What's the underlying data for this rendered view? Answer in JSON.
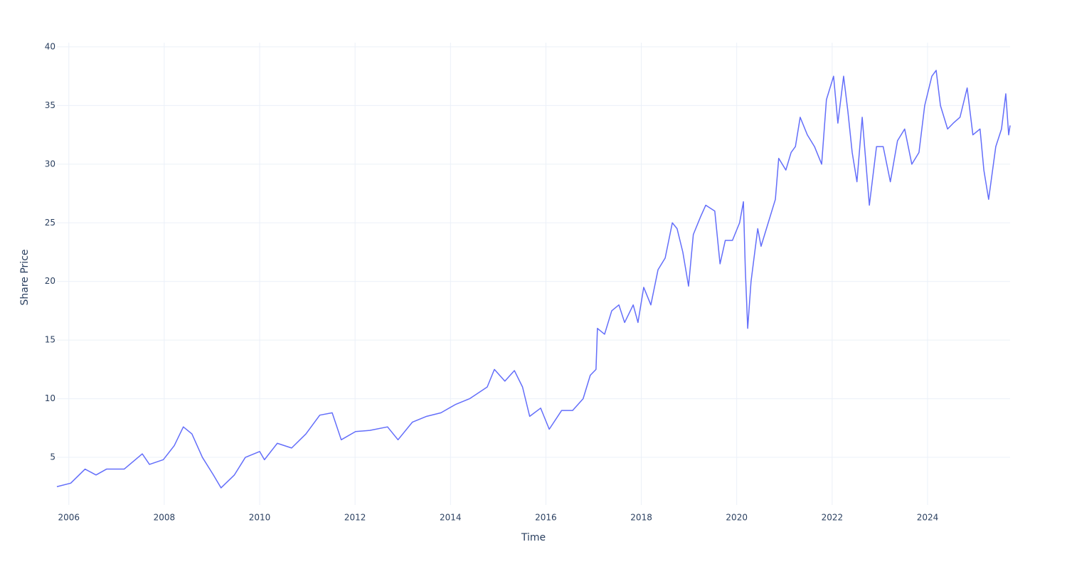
{
  "chart_data": {
    "type": "line",
    "x_label": "Time",
    "y_label": "Share Price",
    "x": [
      2005.75,
      2006.04,
      2006.34,
      2006.57,
      2006.79,
      2007.16,
      2007.54,
      2007.69,
      2007.98,
      2008.21,
      2008.4,
      2008.58,
      2008.8,
      2009.03,
      2009.19,
      2009.47,
      2009.7,
      2010.0,
      2010.1,
      2010.37,
      2010.67,
      2010.97,
      2011.26,
      2011.52,
      2011.71,
      2012.01,
      2012.31,
      2012.68,
      2012.9,
      2013.2,
      2013.5,
      2013.8,
      2014.1,
      2014.4,
      2014.77,
      2014.92,
      2015.14,
      2015.34,
      2015.51,
      2015.66,
      2015.89,
      2016.07,
      2016.33,
      2016.56,
      2016.78,
      2016.93,
      2017.05,
      2017.08,
      2017.23,
      2017.38,
      2017.53,
      2017.65,
      2017.83,
      2017.93,
      2018.05,
      2018.2,
      2018.35,
      2018.5,
      2018.65,
      2018.75,
      2018.87,
      2018.99,
      2019.09,
      2019.24,
      2019.35,
      2019.54,
      2019.65,
      2019.76,
      2019.91,
      2020.06,
      2020.14,
      2020.18,
      2020.23,
      2020.3,
      2020.44,
      2020.51,
      2020.66,
      2020.81,
      2020.88,
      2021.03,
      2021.14,
      2021.23,
      2021.33,
      2021.48,
      2021.63,
      2021.78,
      2021.88,
      2022.03,
      2022.12,
      2022.24,
      2022.33,
      2022.42,
      2022.52,
      2022.63,
      2022.78,
      2022.93,
      2023.07,
      2023.22,
      2023.37,
      2023.52,
      2023.67,
      2023.82,
      2023.94,
      2024.09,
      2024.18,
      2024.27,
      2024.42,
      2024.54,
      2024.68,
      2024.83,
      2024.95,
      2025.1,
      2025.18,
      2025.28,
      2025.43,
      2025.55,
      2025.64,
      2025.7,
      2025.73
    ],
    "series": [
      {
        "name": "Share Price",
        "color": "#636efa",
        "values": [
          2.5,
          2.8,
          4.0,
          3.5,
          4.0,
          4.0,
          5.3,
          4.4,
          4.8,
          6.0,
          7.6,
          7.0,
          5.0,
          3.5,
          2.4,
          3.5,
          5.0,
          5.5,
          4.8,
          6.2,
          5.8,
          7.0,
          8.6,
          8.8,
          6.5,
          7.2,
          7.3,
          7.6,
          6.5,
          8.0,
          8.5,
          8.8,
          9.5,
          10.0,
          11.0,
          12.5,
          11.5,
          12.4,
          11.0,
          8.5,
          9.2,
          7.4,
          9.0,
          9.0,
          10.0,
          12.0,
          12.5,
          16.0,
          15.5,
          17.5,
          18.0,
          16.5,
          18.0,
          16.5,
          19.5,
          18.0,
          21.0,
          22.0,
          25.0,
          24.5,
          22.5,
          19.6,
          24.0,
          25.5,
          26.5,
          26.0,
          21.5,
          23.5,
          23.5,
          25.0,
          26.8,
          21.0,
          16.0,
          20.0,
          24.5,
          23.0,
          25.0,
          27.0,
          30.5,
          29.5,
          31.0,
          31.5,
          34.0,
          32.5,
          31.5,
          30.0,
          35.5,
          37.5,
          33.5,
          37.5,
          34.5,
          31.0,
          28.5,
          34.0,
          26.5,
          31.5,
          31.5,
          28.5,
          32.0,
          33.0,
          30.0,
          31.0,
          35.0,
          37.5,
          38.0,
          35.0,
          33.0,
          33.5,
          34.0,
          36.5,
          32.5,
          33.0,
          29.5,
          27.0,
          31.5,
          33.0,
          36.0,
          32.5,
          33.3
        ]
      }
    ],
    "xlim": [
      2005.75,
      2025.73
    ],
    "ylim": [
      0.94,
      40.36
    ],
    "xticks": [
      2006,
      2008,
      2010,
      2012,
      2014,
      2016,
      2018,
      2020,
      2022,
      2024
    ],
    "yticks": [
      5,
      10,
      15,
      20,
      25,
      30,
      35,
      40
    ],
    "grid": true
  }
}
